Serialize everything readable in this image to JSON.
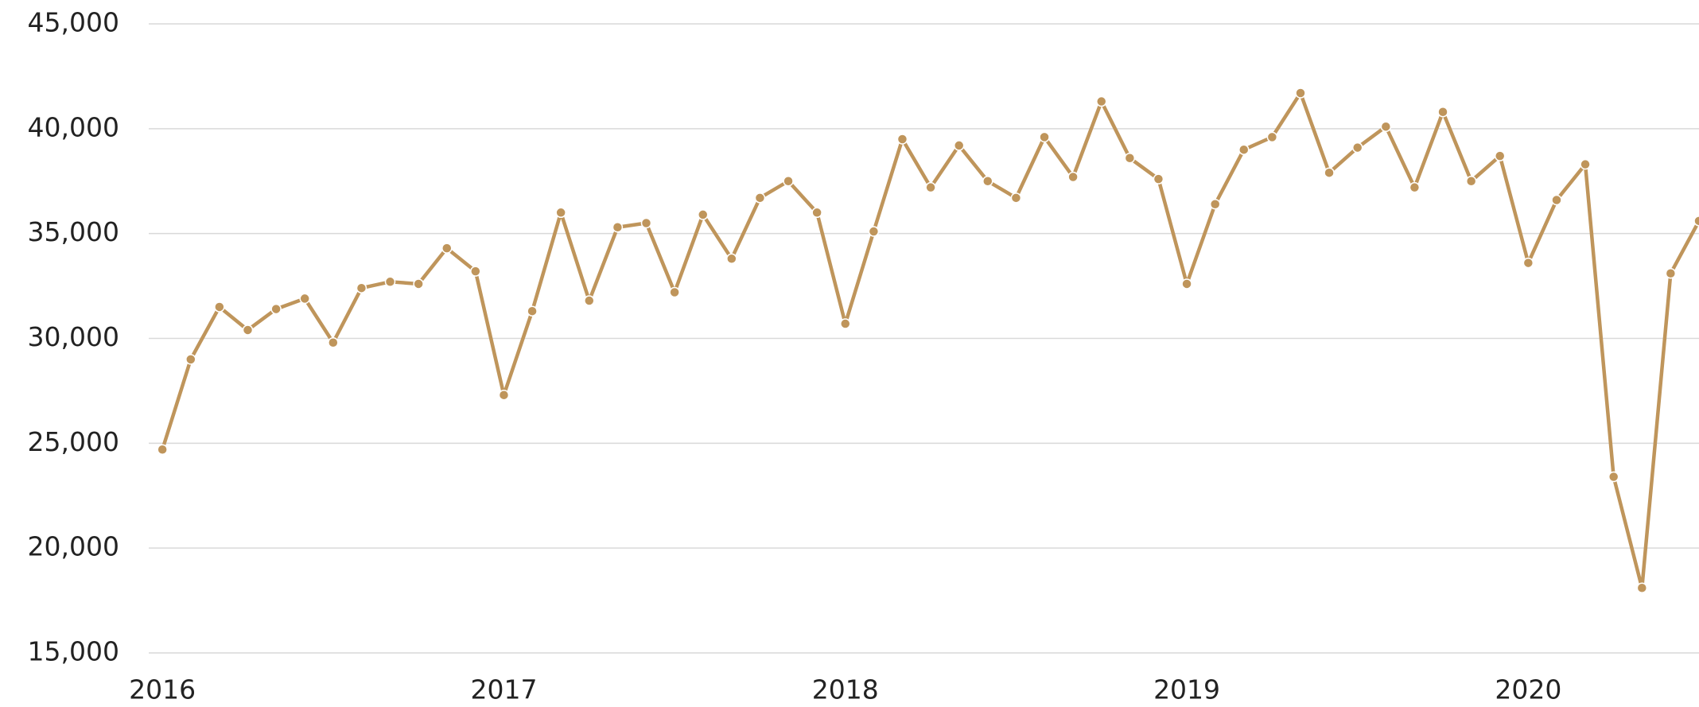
{
  "chart_data": {
    "type": "line",
    "x": [
      2016,
      2016.083,
      2016.167,
      2016.25,
      2016.333,
      2016.417,
      2016.5,
      2016.583,
      2016.667,
      2016.75,
      2016.833,
      2016.917,
      2017,
      2017.083,
      2017.167,
      2017.25,
      2017.333,
      2017.417,
      2017.5,
      2017.583,
      2017.667,
      2017.75,
      2017.833,
      2017.917,
      2018,
      2018.083,
      2018.167,
      2018.25,
      2018.333,
      2018.417,
      2018.5,
      2018.583,
      2018.667,
      2018.75,
      2018.833,
      2018.917,
      2019,
      2019.083,
      2019.167,
      2019.25,
      2019.333,
      2019.417,
      2019.5,
      2019.583,
      2019.667,
      2019.75,
      2019.833,
      2019.917,
      2020,
      2020.083,
      2020.167,
      2020.25,
      2020.333,
      2020.417,
      2020.5
    ],
    "series": [
      {
        "color": "#bf955b",
        "values": [
          24700,
          29000,
          31500,
          30400,
          31400,
          31900,
          29800,
          32400,
          32700,
          32600,
          34300,
          33200,
          27300,
          31300,
          36000,
          31800,
          35300,
          35500,
          32200,
          35900,
          33800,
          36700,
          37500,
          36000,
          30700,
          35100,
          39500,
          37200,
          39200,
          37500,
          36700,
          39600,
          37700,
          41300,
          38600,
          37600,
          32600,
          36400,
          39000,
          39600,
          41700,
          37900,
          39100,
          40100,
          37200,
          40800,
          37500,
          38700,
          33600,
          36600,
          38300,
          23400,
          18100,
          33100,
          35600
        ]
      }
    ],
    "xlim": [
      2015.96,
      2020.5
    ],
    "xticks": [
      2016,
      2017,
      2018,
      2019,
      2020
    ],
    "ylim": [
      15000,
      45000
    ],
    "yticks": [
      {
        "value": 15000,
        "label": "15,000"
      },
      {
        "value": 20000,
        "label": "20,000"
      },
      {
        "value": 25000,
        "label": "25,000"
      },
      {
        "value": 30000,
        "label": "30,000"
      },
      {
        "value": 35000,
        "label": "35,000"
      },
      {
        "value": 40000,
        "label": "40,000"
      },
      {
        "value": 45000,
        "label": "45,000"
      }
    ],
    "grid": true
  }
}
